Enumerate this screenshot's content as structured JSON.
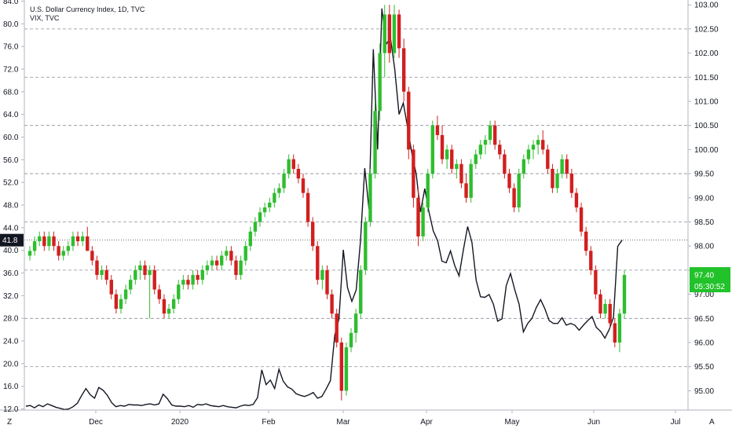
{
  "chart_data": [
    {
      "type": "candlestick",
      "title": "U.S. Dollar Currency Index, 1D, TVC",
      "axis": "right",
      "ylim": [
        94.6,
        103.1
      ],
      "yticks": [
        "103.00",
        "102.50",
        "102.00",
        "101.50",
        "101.00",
        "100.50",
        "100.00",
        "99.50",
        "99.00",
        "98.50",
        "98.00",
        "97.50",
        "97.00",
        "96.50",
        "96.00",
        "95.50",
        "95.00"
      ],
      "last_price": "97.40",
      "countdown": "05:30:52",
      "series": [
        {
          "name": "U.S. Dollar Currency Index",
          "ohlc": [
            [
              97.8,
              98.0,
              97.7,
              97.9
            ],
            [
              97.9,
              98.2,
              97.8,
              98.1
            ],
            [
              98.1,
              98.3,
              98.0,
              98.2
            ],
            [
              98.2,
              98.3,
              97.9,
              98.0
            ],
            [
              98.0,
              98.3,
              97.9,
              98.2
            ],
            [
              98.2,
              98.3,
              97.9,
              98.0
            ],
            [
              98.0,
              98.1,
              97.7,
              97.8
            ],
            [
              97.8,
              98.0,
              97.7,
              97.9
            ],
            [
              97.9,
              98.1,
              97.8,
              98.0
            ],
            [
              98.0,
              98.3,
              97.9,
              98.2
            ],
            [
              98.2,
              98.3,
              98.0,
              98.1
            ],
            [
              98.1,
              98.3,
              98.0,
              98.2
            ],
            [
              98.2,
              98.4,
              97.9,
              97.9
            ],
            [
              97.9,
              98.0,
              97.6,
              97.7
            ],
            [
              97.7,
              97.8,
              97.3,
              97.4
            ],
            [
              97.4,
              97.6,
              97.3,
              97.5
            ],
            [
              97.5,
              97.6,
              97.2,
              97.3
            ],
            [
              97.3,
              97.4,
              96.9,
              97.0
            ],
            [
              97.0,
              97.1,
              96.6,
              96.7
            ],
            [
              96.7,
              97.0,
              96.6,
              96.9
            ],
            [
              96.9,
              97.2,
              96.8,
              97.1
            ],
            [
              97.1,
              97.4,
              97.0,
              97.3
            ],
            [
              97.3,
              97.6,
              97.2,
              97.5
            ],
            [
              97.5,
              97.7,
              97.3,
              97.6
            ],
            [
              97.6,
              97.7,
              97.3,
              97.4
            ],
            [
              97.4,
              97.6,
              96.5,
              97.5
            ],
            [
              97.5,
              97.6,
              97.0,
              97.1
            ],
            [
              97.1,
              97.2,
              96.8,
              96.9
            ],
            [
              96.9,
              97.0,
              96.5,
              96.6
            ],
            [
              96.6,
              96.8,
              96.5,
              96.7
            ],
            [
              96.7,
              97.0,
              96.6,
              96.9
            ],
            [
              96.9,
              97.3,
              96.8,
              97.2
            ],
            [
              97.2,
              97.4,
              97.1,
              97.3
            ],
            [
              97.3,
              97.4,
              97.1,
              97.2
            ],
            [
              97.2,
              97.5,
              97.1,
              97.4
            ],
            [
              97.4,
              97.5,
              97.2,
              97.3
            ],
            [
              97.3,
              97.6,
              97.2,
              97.5
            ],
            [
              97.5,
              97.7,
              97.4,
              97.6
            ],
            [
              97.6,
              97.8,
              97.5,
              97.7
            ],
            [
              97.7,
              97.8,
              97.5,
              97.6
            ],
            [
              97.6,
              97.9,
              97.5,
              97.8
            ],
            [
              97.8,
              98.0,
              97.7,
              97.9
            ],
            [
              97.9,
              98.0,
              97.6,
              97.7
            ],
            [
              97.7,
              97.8,
              97.3,
              97.4
            ],
            [
              97.4,
              97.8,
              97.3,
              97.7
            ],
            [
              97.7,
              98.1,
              97.6,
              98.0
            ],
            [
              98.0,
              98.4,
              97.9,
              98.3
            ],
            [
              98.3,
              98.6,
              98.2,
              98.5
            ],
            [
              98.5,
              98.8,
              98.4,
              98.7
            ],
            [
              98.7,
              98.9,
              98.6,
              98.8
            ],
            [
              98.8,
              99.0,
              98.7,
              98.9
            ],
            [
              98.9,
              99.2,
              98.8,
              99.1
            ],
            [
              99.1,
              99.3,
              99.0,
              99.2
            ],
            [
              99.2,
              99.6,
              99.1,
              99.5
            ],
            [
              99.5,
              99.9,
              99.4,
              99.8
            ],
            [
              99.8,
              99.9,
              99.5,
              99.6
            ],
            [
              99.6,
              99.7,
              99.3,
              99.4
            ],
            [
              99.4,
              99.5,
              99.0,
              99.1
            ],
            [
              99.1,
              99.2,
              98.4,
              98.5
            ],
            [
              98.5,
              98.6,
              97.9,
              98.0
            ],
            [
              98.0,
              98.1,
              97.2,
              97.3
            ],
            [
              97.3,
              97.6,
              97.1,
              97.5
            ],
            [
              97.5,
              97.6,
              96.9,
              97.0
            ],
            [
              97.0,
              97.1,
              96.5,
              96.6
            ],
            [
              96.6,
              96.7,
              95.9,
              96.0
            ],
            [
              96.0,
              96.1,
              94.8,
              95.0
            ],
            [
              95.0,
              96.0,
              94.9,
              95.9
            ],
            [
              95.9,
              96.3,
              95.8,
              96.2
            ],
            [
              96.2,
              96.7,
              96.0,
              96.6
            ],
            [
              96.6,
              97.6,
              96.5,
              97.5
            ],
            [
              97.5,
              98.6,
              97.4,
              98.5
            ],
            [
              98.5,
              99.6,
              98.4,
              99.5
            ],
            [
              99.5,
              101.0,
              99.4,
              100.8
            ],
            [
              100.8,
              102.2,
              100.6,
              102.0
            ],
            [
              102.0,
              103.0,
              101.5,
              102.8
            ],
            [
              102.8,
              103.0,
              101.8,
              102.0
            ],
            [
              102.0,
              103.0,
              101.9,
              102.8
            ],
            [
              102.8,
              102.9,
              101.9,
              102.1
            ],
            [
              102.1,
              102.3,
              101.0,
              101.2
            ],
            [
              101.2,
              101.3,
              99.8,
              100.0
            ],
            [
              100.0,
              100.1,
              98.8,
              99.0
            ],
            [
              99.0,
              99.2,
              98.0,
              98.2
            ],
            [
              98.2,
              98.9,
              98.1,
              98.8
            ],
            [
              98.8,
              99.6,
              98.7,
              99.5
            ],
            [
              99.5,
              100.6,
              99.4,
              100.5
            ],
            [
              100.5,
              100.7,
              100.2,
              100.3
            ],
            [
              100.3,
              100.5,
              99.7,
              99.8
            ],
            [
              99.8,
              100.1,
              99.6,
              100.0
            ],
            [
              100.0,
              100.1,
              99.5,
              99.6
            ],
            [
              99.6,
              99.8,
              99.4,
              99.7
            ],
            [
              99.7,
              99.8,
              99.2,
              99.3
            ],
            [
              99.3,
              99.5,
              98.9,
              99.0
            ],
            [
              99.0,
              99.8,
              98.9,
              99.7
            ],
            [
              99.7,
              100.0,
              99.6,
              99.9
            ],
            [
              99.9,
              100.2,
              99.8,
              100.1
            ],
            [
              100.1,
              100.3,
              99.9,
              100.2
            ],
            [
              100.2,
              100.6,
              100.1,
              100.5
            ],
            [
              100.5,
              100.6,
              100.0,
              100.1
            ],
            [
              100.1,
              100.2,
              99.8,
              99.9
            ],
            [
              99.9,
              100.0,
              99.4,
              99.5
            ],
            [
              99.5,
              99.6,
              99.1,
              99.2
            ],
            [
              99.2,
              99.3,
              98.7,
              98.8
            ],
            [
              98.8,
              99.6,
              98.7,
              99.5
            ],
            [
              99.5,
              99.9,
              99.4,
              99.8
            ],
            [
              99.8,
              100.1,
              99.7,
              100.0
            ],
            [
              100.0,
              100.2,
              99.8,
              100.1
            ],
            [
              100.1,
              100.3,
              99.9,
              100.2
            ],
            [
              100.2,
              100.4,
              99.9,
              100.0
            ],
            [
              100.0,
              100.1,
              99.5,
              99.6
            ],
            [
              99.6,
              99.7,
              99.1,
              99.2
            ],
            [
              99.2,
              99.6,
              99.1,
              99.5
            ],
            [
              99.5,
              99.9,
              99.4,
              99.8
            ],
            [
              99.8,
              99.9,
              99.4,
              99.5
            ],
            [
              99.5,
              99.6,
              99.0,
              99.1
            ],
            [
              99.1,
              99.2,
              98.7,
              98.8
            ],
            [
              98.8,
              98.9,
              98.2,
              98.3
            ],
            [
              98.3,
              98.4,
              97.8,
              97.9
            ],
            [
              97.9,
              98.0,
              97.4,
              97.5
            ],
            [
              97.5,
              97.6,
              96.9,
              97.0
            ],
            [
              97.0,
              97.1,
              96.5,
              96.6
            ],
            [
              96.6,
              96.9,
              96.5,
              96.8
            ],
            [
              96.8,
              96.9,
              96.3,
              96.4
            ],
            [
              96.4,
              96.5,
              95.9,
              96.0
            ],
            [
              96.0,
              96.7,
              95.8,
              96.6
            ],
            [
              96.6,
              97.5,
              96.5,
              97.4
            ]
          ]
        }
      ],
      "bull_color": "#2fbd2f",
      "bear_color": "#d11f1f"
    },
    {
      "type": "line",
      "title": "VIX, TVC",
      "axis": "left",
      "ylim": [
        11.8,
        84.2
      ],
      "yticks": [
        "84.0",
        "80.0",
        "76.0",
        "72.0",
        "68.0",
        "64.0",
        "60.0",
        "56.0",
        "52.0",
        "48.0",
        "44.0",
        "40.0",
        "36.0",
        "32.0",
        "28.0",
        "24.0",
        "20.0",
        "16.0",
        "12.0"
      ],
      "last_value": "41.8",
      "series": [
        {
          "name": "VIX",
          "values": [
            12.5,
            12.6,
            12.2,
            12.7,
            12.4,
            12.9,
            12.6,
            12.3,
            12.1,
            11.9,
            12.0,
            12.4,
            13.0,
            14.4,
            15.6,
            14.5,
            13.9,
            15.8,
            15.3,
            14.4,
            13.1,
            12.4,
            12.6,
            12.5,
            12.8,
            12.7,
            12.7,
            12.6,
            12.8,
            12.9,
            12.7,
            12.9,
            14.6,
            13.8,
            12.7,
            12.5,
            12.5,
            12.4,
            12.6,
            12.3,
            12.8,
            12.7,
            12.9,
            12.6,
            12.5,
            12.4,
            12.6,
            12.4,
            12.3,
            12.2,
            12.5,
            12.7,
            12.6,
            12.8,
            14.0,
            18.9,
            16.3,
            17.1,
            15.6,
            19.0,
            16.9,
            15.9,
            15.5,
            14.7,
            14.4,
            14.2,
            14.5,
            14.9,
            13.9,
            14.2,
            15.5,
            17.0,
            25.0,
            27.9,
            40.1,
            33.4,
            31.0,
            33.0,
            41.5,
            54.5,
            47.3,
            75.5,
            57.8,
            82.7,
            76.4,
            77.5,
            72.0,
            64.0,
            66.0,
            61.7,
            57.1,
            53.5,
            46.8,
            50.9,
            46.7,
            43.4,
            41.7,
            38.1,
            37.8,
            39.9,
            37.3,
            35.5,
            40.1,
            44.2,
            41.4,
            34.7,
            31.8,
            31.7,
            32.2,
            30.5,
            27.5,
            27.9,
            33.8,
            35.9,
            33.0,
            30.5,
            25.6,
            27.1,
            28.0,
            29.9,
            31.3,
            29.7,
            27.6,
            27.1,
            27.1,
            28.1,
            26.8,
            27.1,
            26.8,
            25.9,
            26.8,
            27.6,
            28.3,
            26.4,
            25.7,
            24.5,
            26.0,
            28.2,
            40.7,
            41.8
          ]
        }
      ],
      "color": "#131722"
    }
  ],
  "x_axis": {
    "labels": [
      "Dec",
      "2020",
      "Feb",
      "Mar",
      "Apr",
      "May",
      "Jun",
      "Jul"
    ],
    "left_corner": "Z",
    "right_corner": "A"
  }
}
